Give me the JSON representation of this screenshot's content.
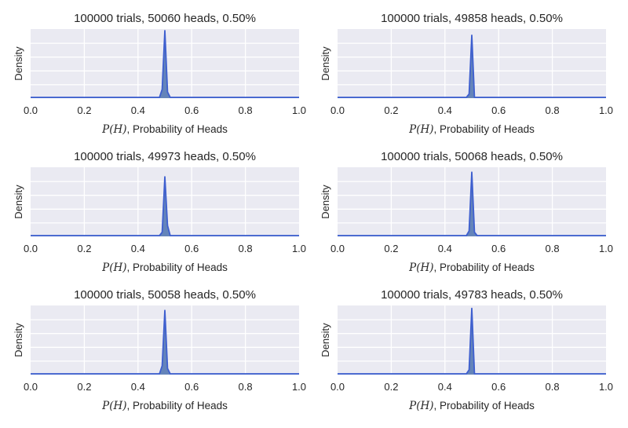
{
  "chart_data": [
    {
      "type": "area",
      "title": "100000 trials, 50060 heads, 0.50%",
      "xlabel_math": "P(H)",
      "xlabel_text": ", Probability of Heads",
      "ylabel": "Density",
      "xlim": [
        0.0,
        1.0
      ],
      "xticks": [
        "0.0",
        "0.2",
        "0.4",
        "0.6",
        "0.8",
        "1.0"
      ],
      "grid": true,
      "series": [
        {
          "x": [
            0.0,
            0.48,
            0.49,
            0.5,
            0.51,
            0.52,
            1.0
          ],
          "y": [
            0,
            0,
            0.12,
            1.0,
            0.08,
            0,
            0
          ]
        }
      ]
    },
    {
      "type": "area",
      "title": "100000 trials, 49858 heads, 0.50%",
      "xlabel_math": "P(H)",
      "xlabel_text": ", Probability of Heads",
      "ylabel": "Density",
      "xlim": [
        0.0,
        1.0
      ],
      "xticks": [
        "0.0",
        "0.2",
        "0.4",
        "0.6",
        "0.8",
        "1.0"
      ],
      "grid": true,
      "series": [
        {
          "x": [
            0.0,
            0.48,
            0.49,
            0.5,
            0.51,
            1.0
          ],
          "y": [
            0,
            0,
            0.05,
            0.93,
            0,
            0
          ]
        }
      ]
    },
    {
      "type": "area",
      "title": "100000 trials, 49973 heads, 0.50%",
      "xlabel_math": "P(H)",
      "xlabel_text": ", Probability of Heads",
      "ylabel": "Density",
      "xlim": [
        0.0,
        1.0
      ],
      "xticks": [
        "0.0",
        "0.2",
        "0.4",
        "0.6",
        "0.8",
        "1.0"
      ],
      "grid": true,
      "series": [
        {
          "x": [
            0.0,
            0.48,
            0.49,
            0.5,
            0.51,
            0.52,
            1.0
          ],
          "y": [
            0,
            0,
            0.05,
            0.88,
            0.15,
            0,
            0
          ]
        }
      ]
    },
    {
      "type": "area",
      "title": "100000 trials, 50068 heads, 0.50%",
      "xlabel_math": "P(H)",
      "xlabel_text": ", Probability of Heads",
      "ylabel": "Density",
      "xlim": [
        0.0,
        1.0
      ],
      "xticks": [
        "0.0",
        "0.2",
        "0.4",
        "0.6",
        "0.8",
        "1.0"
      ],
      "grid": true,
      "series": [
        {
          "x": [
            0.0,
            0.48,
            0.49,
            0.5,
            0.51,
            0.52,
            1.0
          ],
          "y": [
            0,
            0,
            0.07,
            0.95,
            0.05,
            0,
            0
          ]
        }
      ]
    },
    {
      "type": "area",
      "title": "100000 trials, 50058 heads, 0.50%",
      "xlabel_math": "P(H)",
      "xlabel_text": ", Probability of Heads",
      "ylabel": "Density",
      "xlim": [
        0.0,
        1.0
      ],
      "xticks": [
        "0.0",
        "0.2",
        "0.4",
        "0.6",
        "0.8",
        "1.0"
      ],
      "grid": true,
      "series": [
        {
          "x": [
            0.0,
            0.48,
            0.49,
            0.5,
            0.51,
            0.52,
            1.0
          ],
          "y": [
            0,
            0,
            0.12,
            0.95,
            0.08,
            0,
            0
          ]
        }
      ]
    },
    {
      "type": "area",
      "title": "100000 trials, 49783 heads, 0.50%",
      "xlabel_math": "P(H)",
      "xlabel_text": ", Probability of Heads",
      "ylabel": "Density",
      "xlim": [
        0.0,
        1.0
      ],
      "xticks": [
        "0.0",
        "0.2",
        "0.4",
        "0.6",
        "0.8",
        "1.0"
      ],
      "grid": true,
      "series": [
        {
          "x": [
            0.0,
            0.48,
            0.49,
            0.5,
            0.51,
            1.0
          ],
          "y": [
            0,
            0,
            0.06,
            0.98,
            0,
            0
          ]
        }
      ]
    }
  ],
  "colors": {
    "axes_bg": "#EAEAF2",
    "grid": "#FFFFFF",
    "fill": "#4C72B0",
    "line": "#3E5FCF"
  }
}
